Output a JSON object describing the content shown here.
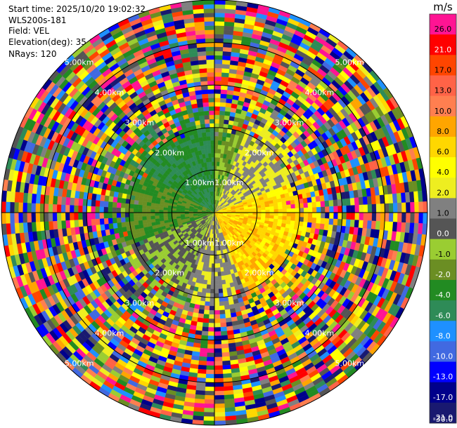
{
  "info": {
    "start_time": "Start time: 2025/10/20 19:02:32",
    "instrument": "WLS200s-181",
    "field": "Field: VEL",
    "elevation": "Elevation(deg): 35.00",
    "nrays": "NRays: 120"
  },
  "chart_data": {
    "type": "heatmap",
    "projection": "polar-ppi",
    "field": "VEL",
    "units": "m/s",
    "n_rays": 120,
    "elevation_deg": 35.0,
    "max_range_km": 5.0,
    "range_rings_km": [
      1,
      2,
      3,
      4,
      5
    ],
    "range_ring_labels": [
      "1.00km",
      "2.00km",
      "3.00km",
      "4.00km",
      "5.00km"
    ],
    "colorbar": {
      "unit_label": "m/s",
      "tick_labels": [
        "26.0",
        "21.0",
        "17.0",
        "13.0",
        "10.0",
        "8.0",
        "6.0",
        "4.0",
        "2.0",
        "1.0",
        "0.0",
        "-1.0",
        "-2.0",
        "-4.0",
        "-6.0",
        "-8.0",
        "-10.0",
        "-13.0",
        "-17.0",
        "-21.0",
        "-26.0",
        "-30.0"
      ],
      "colors": [
        "#ff1493",
        "#ff0000",
        "#ff4500",
        "#ff6347",
        "#ff7f50",
        "#ffa500",
        "#ffd700",
        "#ffff00",
        "#eeee20",
        "#808080",
        "#555555",
        "#9acd32",
        "#6b8e23",
        "#228b22",
        "#2e8b57",
        "#1e90ff",
        "#4169e1",
        "#0000ff",
        "#00008b",
        "#191970"
      ],
      "vmin": -30.0,
      "vmax": 30.0
    },
    "pattern": {
      "near_field_km": 2.3,
      "sectors": [
        {
          "azimuth_from_deg": 300,
          "azimuth_to_deg": 360,
          "velocity": -12
        },
        {
          "azimuth_from_deg": 0,
          "azimuth_to_deg": 20,
          "velocity": -7
        },
        {
          "azimuth_from_deg": 20,
          "azimuth_to_deg": 70,
          "velocity": 3
        },
        {
          "azimuth_from_deg": 70,
          "azimuth_to_deg": 110,
          "velocity": 10
        },
        {
          "azimuth_from_deg": 110,
          "azimuth_to_deg": 160,
          "velocity": 11
        },
        {
          "azimuth_from_deg": 160,
          "azimuth_to_deg": 200,
          "velocity": 2
        },
        {
          "azimuth_from_deg": 200,
          "azimuth_to_deg": 250,
          "velocity": -3
        },
        {
          "azimuth_from_deg": 250,
          "azimuth_to_deg": 300,
          "velocity": -9
        }
      ],
      "far_field": "noise"
    }
  }
}
